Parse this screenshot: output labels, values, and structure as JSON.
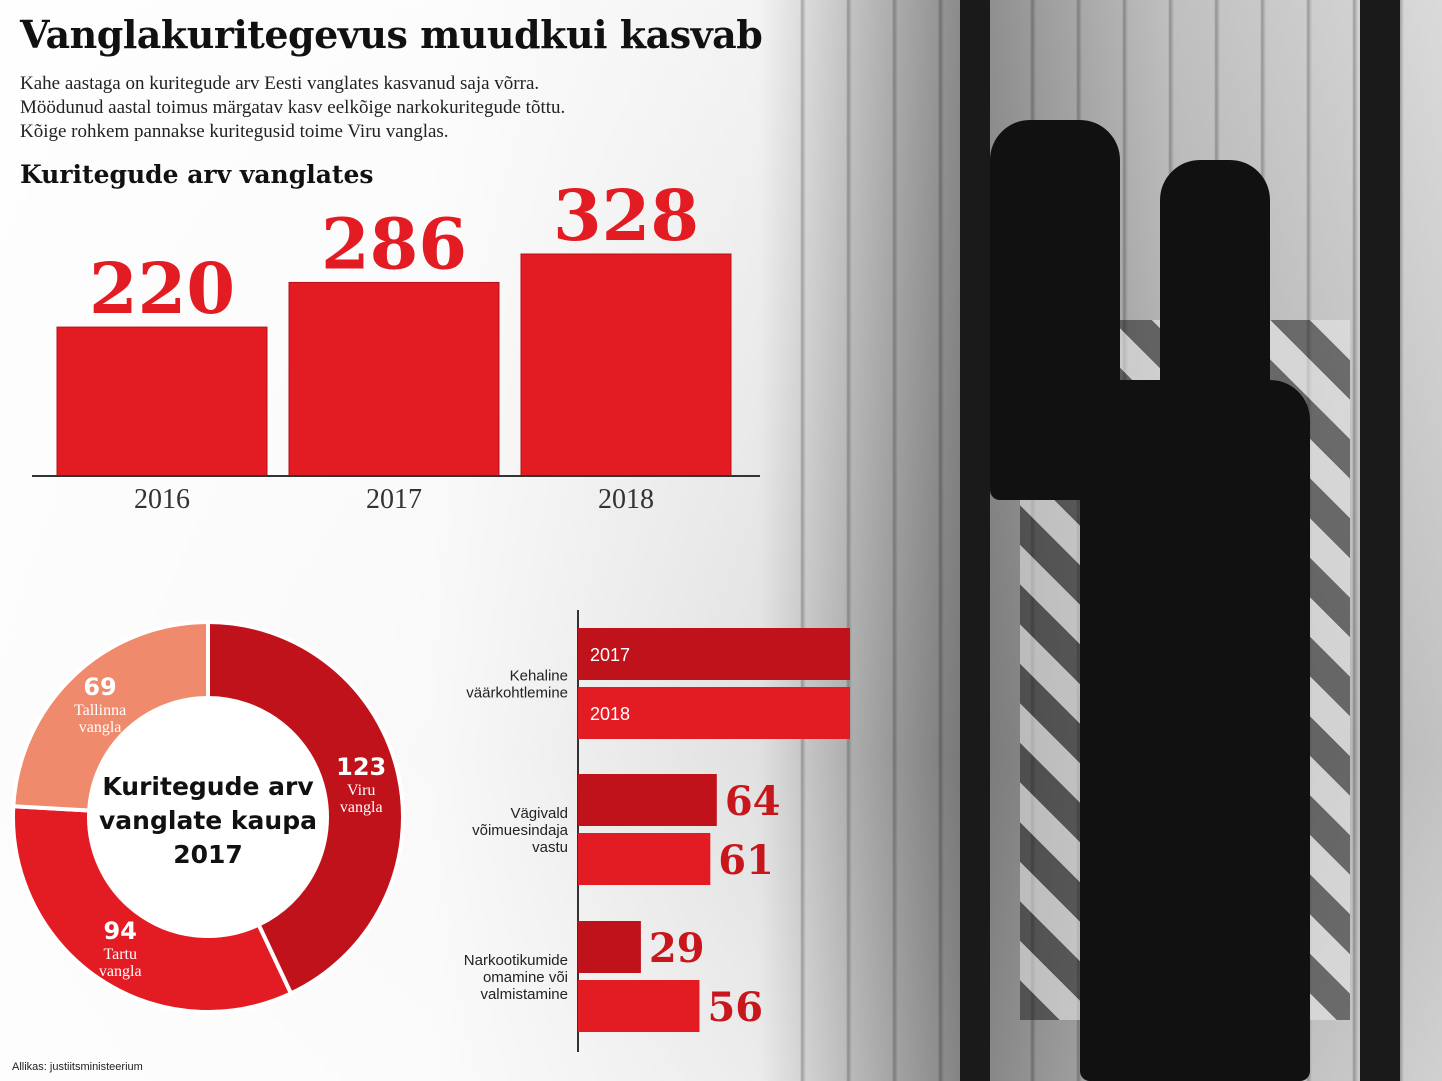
{
  "title": "Vanglakuritegevus muudkui kasvab",
  "intro": [
    "Kahe aastaga on kuritegude arv Eesti vanglates kasvanud saja võrra.",
    "Möödunud aastal toimus märgatav kasv eelkõige narkokuritegude tõttu.",
    "Kõige rohkem pannakse kuritegusid toime Viru vanglas."
  ],
  "source": "Allikas: justiitsministeerium",
  "colors": {
    "bar_red": "#e31b23",
    "dark_red": "#c0121b",
    "salmon": "#f08a6c",
    "label_red": "#c8161d"
  },
  "chart_data": [
    {
      "type": "bar",
      "title": "Kuritegude arv vanglates",
      "categories": [
        "2016",
        "2017",
        "2018"
      ],
      "values": [
        220,
        286,
        328
      ],
      "ylim": [
        0,
        328
      ]
    },
    {
      "type": "bar",
      "orientation": "horizontal",
      "categories": [
        "Kehaline väärkohtlemine",
        "Vägivald võimuesindaja vastu",
        "Narkootikumide omamine või valmistamine"
      ],
      "series": [
        {
          "name": "2017",
          "values": [
            137,
            64,
            29
          ]
        },
        {
          "name": "2018",
          "values": [
            142,
            61,
            56
          ]
        }
      ]
    },
    {
      "type": "pie",
      "title": "Kuritegude arv vanglate kaupa 2017",
      "slices": [
        {
          "label": "Viru vangla",
          "value": 123
        },
        {
          "label": "Tartu vangla",
          "value": 94
        },
        {
          "label": "Tallinna vangla",
          "value": 69
        }
      ]
    }
  ]
}
